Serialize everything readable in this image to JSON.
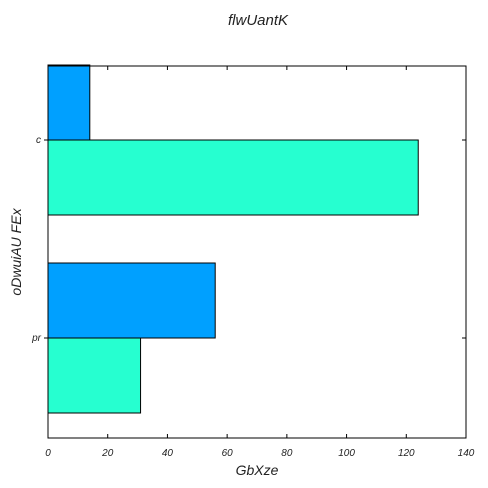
{
  "chart_data": {
    "type": "bar",
    "orientation": "horizontal",
    "title": "flwUantK",
    "xlabel": "GbXze",
    "ylabel": "oDwuiAU FEx",
    "categories": [
      "c",
      "pr"
    ],
    "series": [
      {
        "color": "#00a0ff",
        "values": [
          14,
          56
        ]
      },
      {
        "color": "#26ffd0",
        "values": [
          124,
          31
        ]
      }
    ],
    "xlim": [
      0,
      140
    ],
    "xticks": [
      0,
      20,
      40,
      60,
      80,
      100,
      120,
      140
    ],
    "grid": false,
    "legend": "none"
  }
}
